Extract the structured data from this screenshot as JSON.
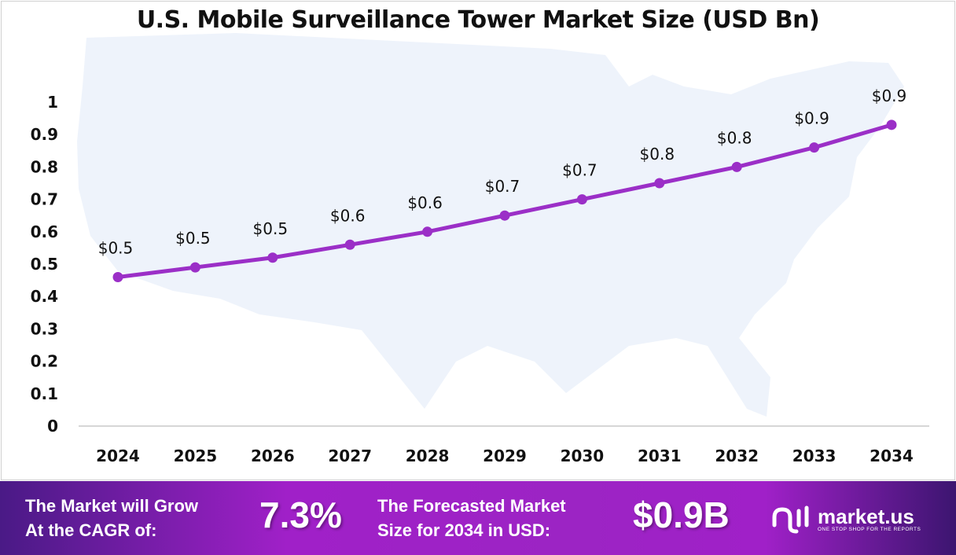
{
  "chart_data": {
    "type": "line",
    "title": "U.S. Mobile Surveillance Tower Market Size (USD Bn)",
    "categories": [
      "2024",
      "2025",
      "2026",
      "2027",
      "2028",
      "2029",
      "2030",
      "2031",
      "2032",
      "2033",
      "2034"
    ],
    "values": [
      0.46,
      0.49,
      0.52,
      0.56,
      0.6,
      0.65,
      0.7,
      0.75,
      0.8,
      0.86,
      0.93
    ],
    "data_labels": [
      "$0.5",
      "$0.5",
      "$0.5",
      "$0.6",
      "$0.6",
      "$0.7",
      "$0.7",
      "$0.8",
      "$0.8",
      "$0.9",
      "$0.9"
    ],
    "yticks": [
      "0",
      "0.1",
      "0.2",
      "0.3",
      "0.4",
      "0.5",
      "0.6",
      "0.7",
      "0.8",
      "0.9",
      "1"
    ],
    "ylim": [
      0,
      1
    ],
    "grid": false,
    "line_color": "#9b2fc7",
    "background": "U.S. map silhouette"
  },
  "footer": {
    "cagr_label_1": "The Market will Grow",
    "cagr_label_2": "At the CAGR of:",
    "cagr_value": "7.3%",
    "forecast_label_1": "The Forecasted Market",
    "forecast_label_2": "Size for 2034 in USD:",
    "forecast_value": "$0.9B",
    "logo_name": "market.us",
    "logo_tagline": "ONE STOP SHOP FOR THE REPORTS"
  }
}
